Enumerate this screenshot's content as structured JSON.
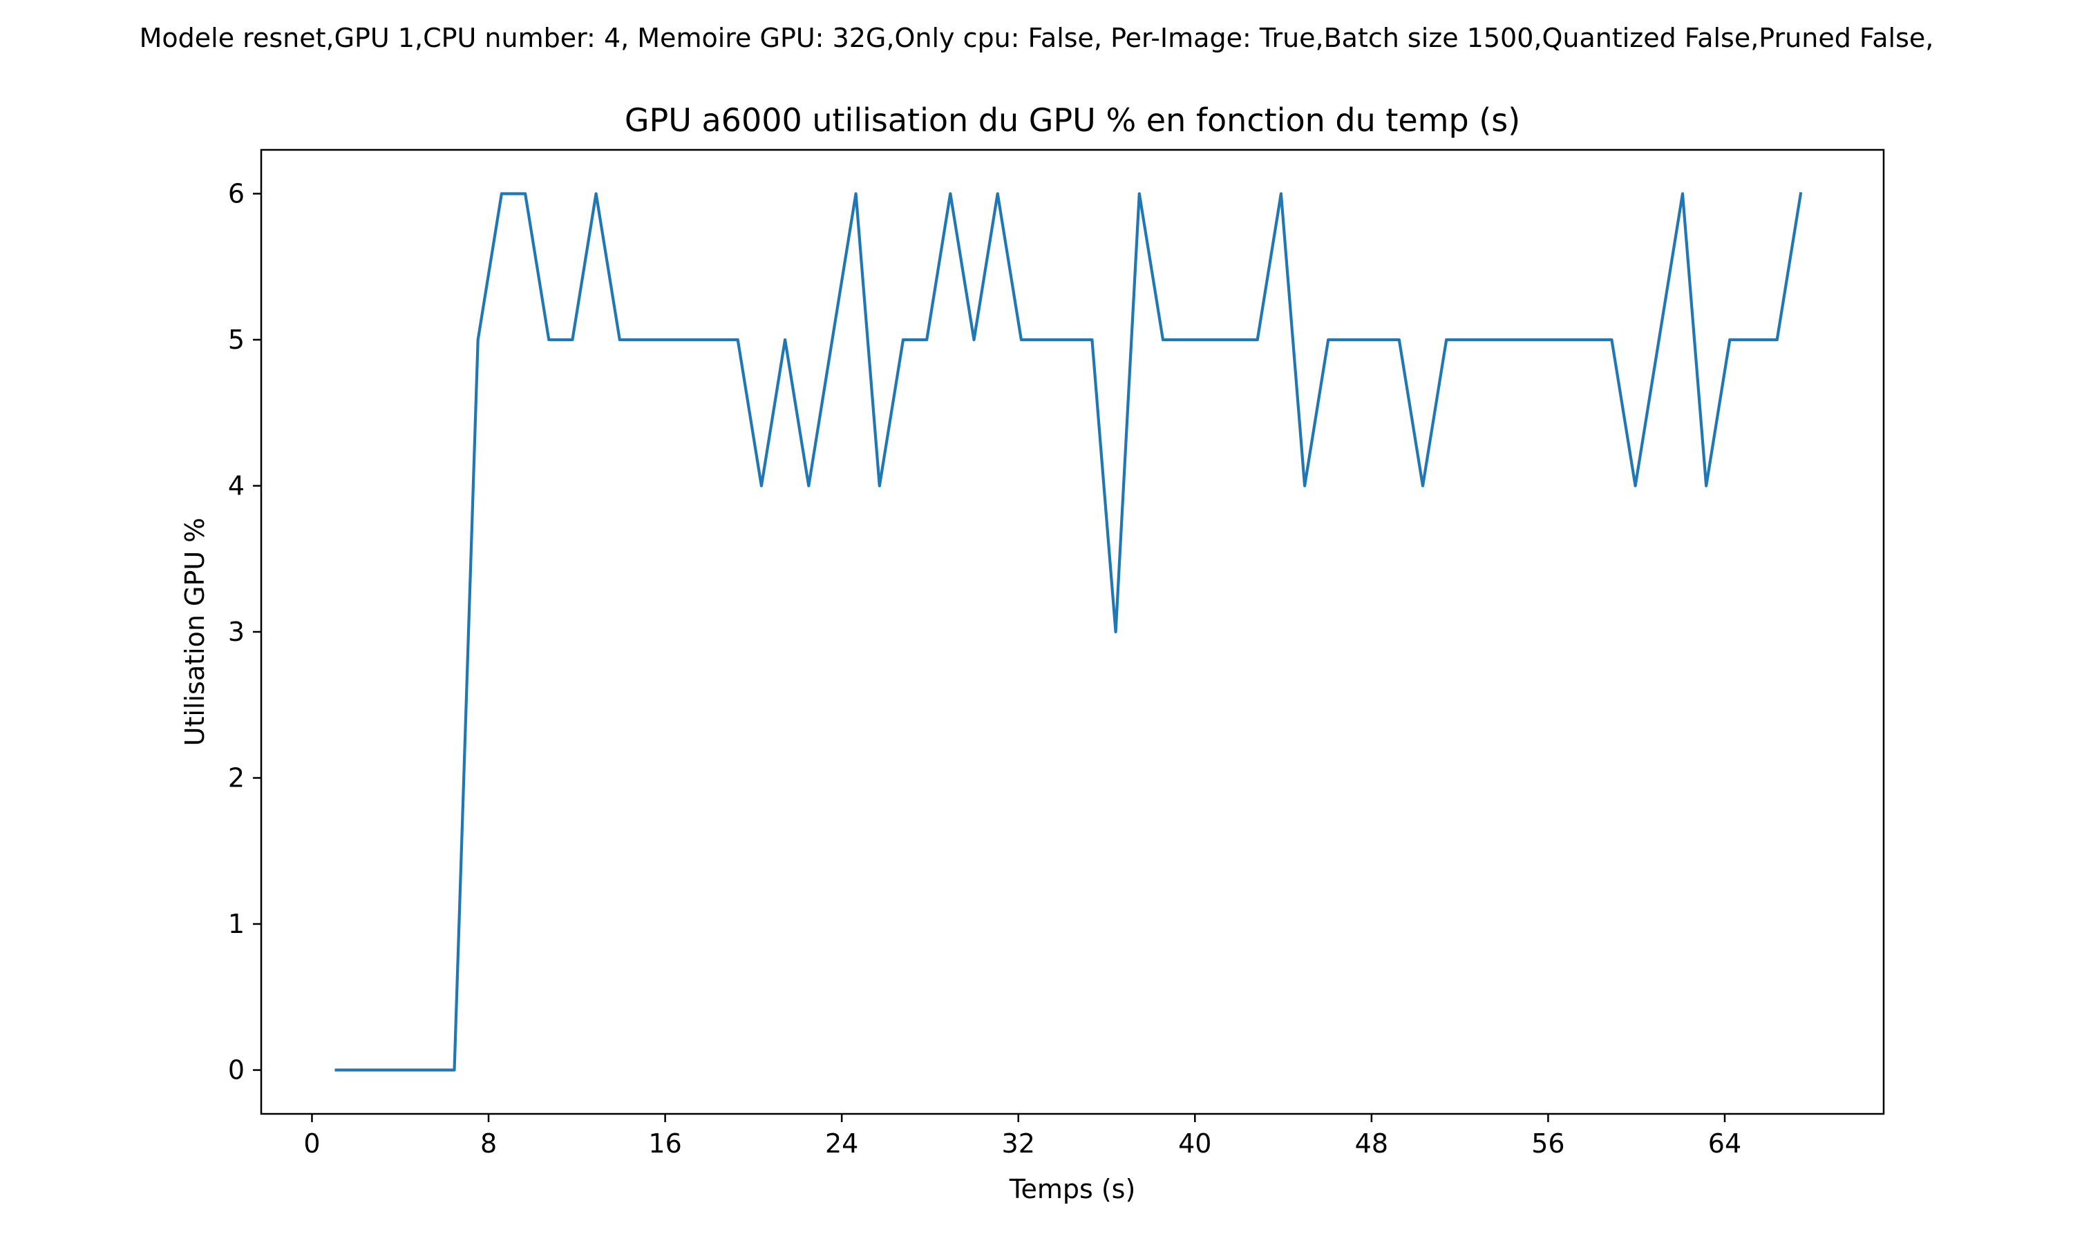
{
  "chart_data": {
    "type": "line",
    "suptitle": "Modele resnet,GPU 1,CPU number: 4, Memoire GPU: 32G,Only cpu: False, Per-Image: True,Batch size 1500,Quantized False,Pruned False,",
    "title": "GPU a6000 utilisation du GPU % en fonction du temp (s)",
    "xlabel": "Temps (s)",
    "ylabel": "Utilisation GPU %",
    "xlim": [
      -2.3,
      71.2
    ],
    "ylim": [
      -0.3,
      6.3
    ],
    "xticks": [
      0,
      8,
      16,
      24,
      32,
      40,
      48,
      56,
      64
    ],
    "yticks": [
      0,
      1,
      2,
      3,
      4,
      5,
      6
    ],
    "grid": false,
    "line_color": "#1f77b4",
    "series": [
      {
        "x": [
          1.1,
          2.17,
          3.24,
          4.31,
          5.38,
          6.45,
          7.52,
          8.59,
          9.66,
          10.73,
          11.8,
          12.87,
          13.94,
          15.01,
          16.08,
          17.15,
          18.22,
          19.29,
          20.36,
          21.43,
          22.5,
          23.57,
          24.64,
          25.71,
          26.78,
          27.85,
          28.92,
          29.99,
          31.06,
          32.13,
          33.2,
          34.27,
          35.34,
          36.41,
          37.48,
          38.55,
          39.62,
          40.69,
          41.76,
          42.83,
          43.9,
          44.97,
          46.04,
          47.11,
          48.18,
          49.25,
          50.32,
          51.39,
          52.46,
          53.53,
          54.6,
          55.67,
          56.74,
          57.81,
          58.88,
          59.95,
          61.02,
          62.09,
          63.16,
          64.23,
          65.3,
          66.37,
          67.44
        ],
        "values": [
          0,
          0,
          0,
          0,
          0,
          0,
          5,
          6,
          6,
          5,
          5,
          6,
          5,
          5,
          5,
          5,
          5,
          5,
          4,
          5,
          4,
          5,
          6,
          4,
          5,
          5,
          6,
          5,
          6,
          5,
          5,
          5,
          5,
          3,
          6,
          5,
          5,
          5,
          5,
          5,
          6,
          4,
          5,
          5,
          5,
          5,
          4,
          5,
          5,
          5,
          5,
          5,
          5,
          5,
          5,
          4,
          5,
          6,
          4,
          5,
          5,
          5,
          6
        ]
      }
    ]
  }
}
